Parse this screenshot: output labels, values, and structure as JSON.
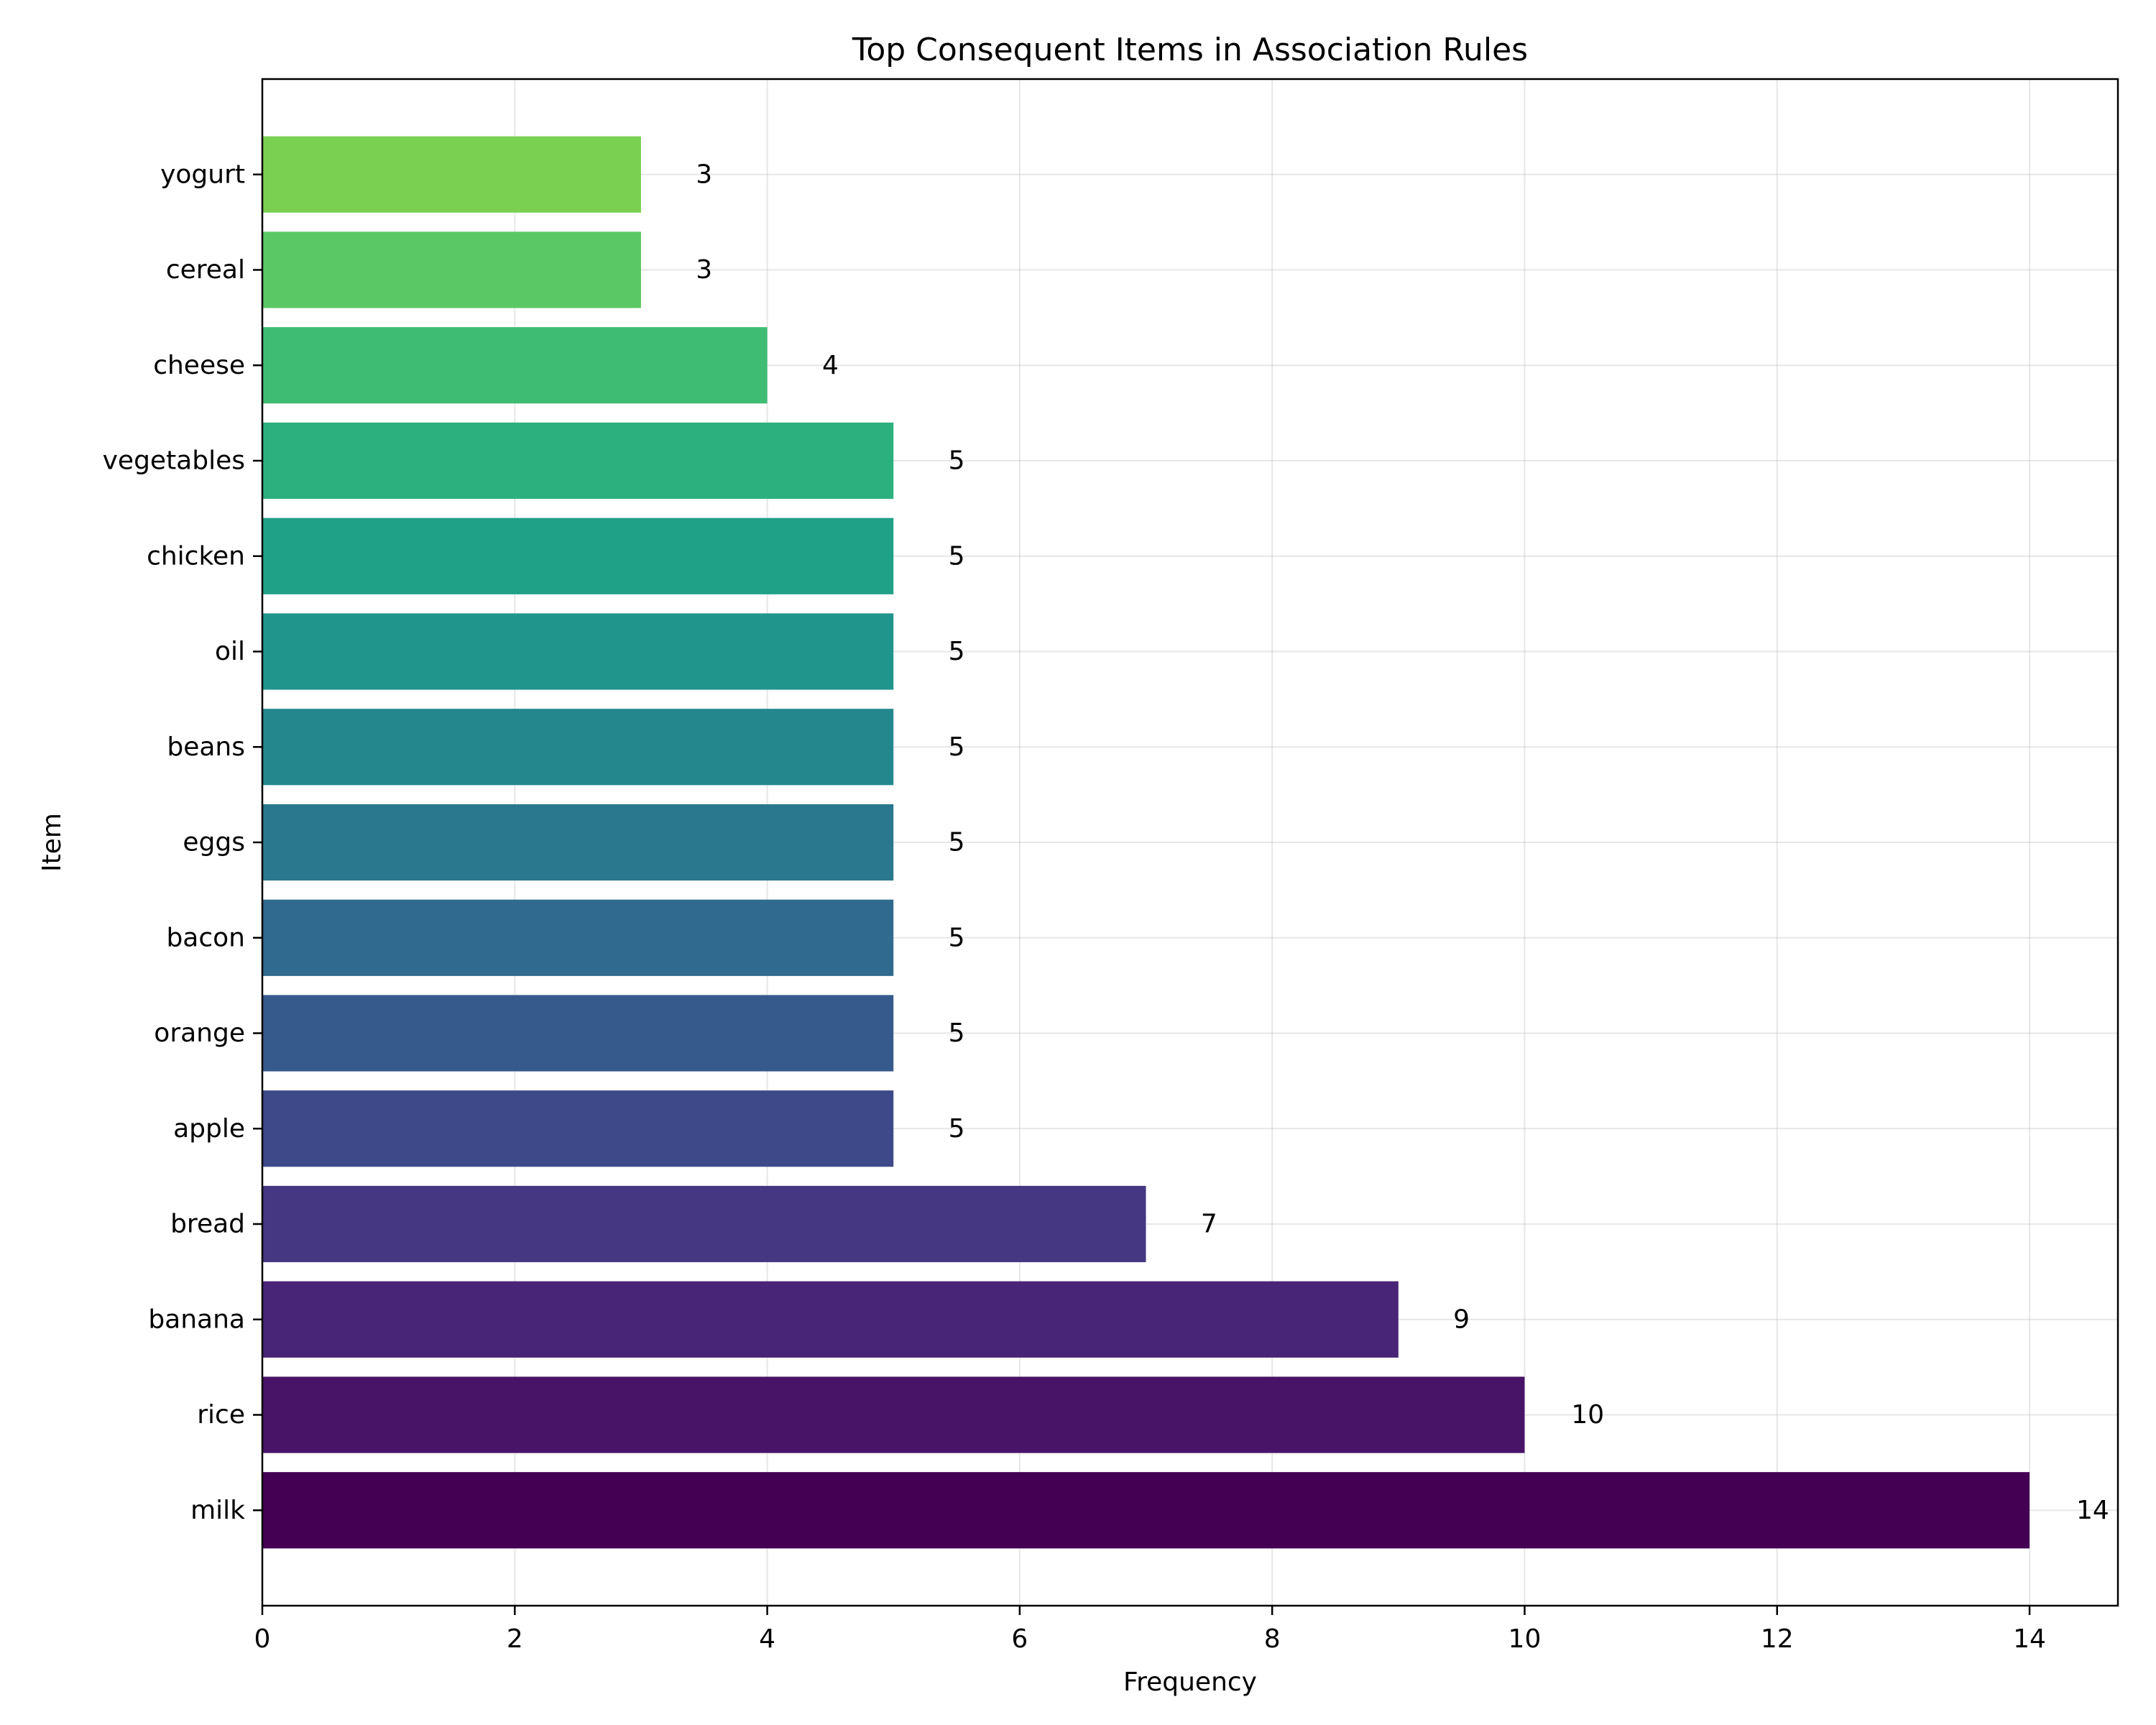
{
  "chart_data": {
    "type": "bar",
    "orientation": "horizontal",
    "title": "Top Consequent Items in Association Rules",
    "xlabel": "Frequency",
    "ylabel": "Item",
    "categories": [
      "milk",
      "rice",
      "banana",
      "bread",
      "apple",
      "orange",
      "bacon",
      "eggs",
      "beans",
      "oil",
      "chicken",
      "vegetables",
      "cheese",
      "cereal",
      "yogurt"
    ],
    "values": [
      14,
      10,
      9,
      7,
      5,
      5,
      5,
      5,
      5,
      5,
      5,
      5,
      4,
      3,
      3
    ],
    "data_labels": [
      "14",
      "10",
      "9",
      "7",
      "5",
      "5",
      "5",
      "5",
      "5",
      "5",
      "5",
      "5",
      "4",
      "3",
      "3"
    ],
    "colors": [
      "#440154",
      "#481467",
      "#482576",
      "#453781",
      "#3e4989",
      "#375a8c",
      "#306a8e",
      "#2a788e",
      "#24878e",
      "#20958b",
      "#1fa187",
      "#2cb17e",
      "#3fbc73",
      "#5ac864",
      "#7ad151"
    ],
    "xlim": [
      0,
      14.7
    ],
    "xticks": [
      "0",
      "2",
      "4",
      "6",
      "8",
      "10",
      "12",
      "14"
    ],
    "xtick_values": [
      0,
      2,
      4,
      6,
      8,
      10,
      12,
      14
    ],
    "grid": true,
    "legend": "none"
  }
}
